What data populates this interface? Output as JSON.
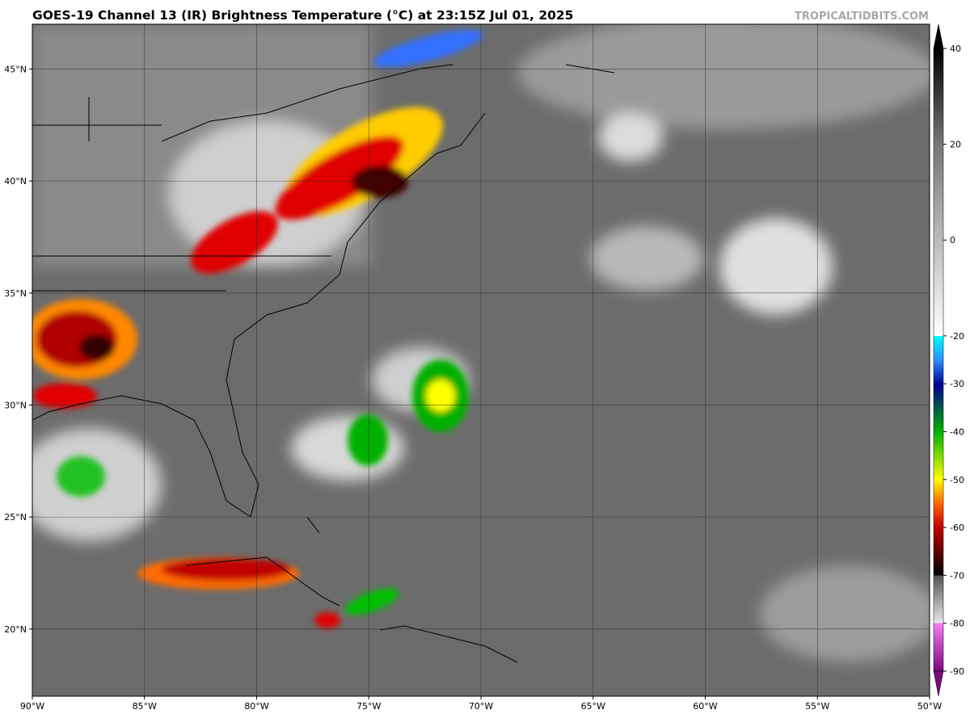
{
  "header": {
    "title": "GOES-19 Channel 13 (IR) Brightness Temperature (°C) at 23:15Z Jul 01, 2025",
    "credit": "TROPICALTIDBITS.COM"
  },
  "map": {
    "xlim": [
      -90,
      -50
    ],
    "ylim": [
      17,
      47
    ],
    "xticks": [
      {
        "value": -90,
        "label": "90°W"
      },
      {
        "value": -85,
        "label": "85°W"
      },
      {
        "value": -80,
        "label": "80°W"
      },
      {
        "value": -75,
        "label": "75°W"
      },
      {
        "value": -70,
        "label": "70°W"
      },
      {
        "value": -65,
        "label": "65°W"
      },
      {
        "value": -60,
        "label": "60°W"
      },
      {
        "value": -55,
        "label": "55°W"
      },
      {
        "value": -50,
        "label": "50°W"
      }
    ],
    "yticks": [
      {
        "value": 20,
        "label": "20°N"
      },
      {
        "value": 25,
        "label": "25°N"
      },
      {
        "value": 30,
        "label": "30°N"
      },
      {
        "value": 35,
        "label": "35°N"
      },
      {
        "value": 40,
        "label": "40°N"
      },
      {
        "value": 45,
        "label": "45°N"
      }
    ]
  },
  "colorbar": {
    "lim": [
      -90,
      40
    ],
    "ticks": [
      40,
      20,
      0,
      -20,
      -30,
      -40,
      -50,
      -60,
      -70,
      -80,
      -90
    ]
  }
}
